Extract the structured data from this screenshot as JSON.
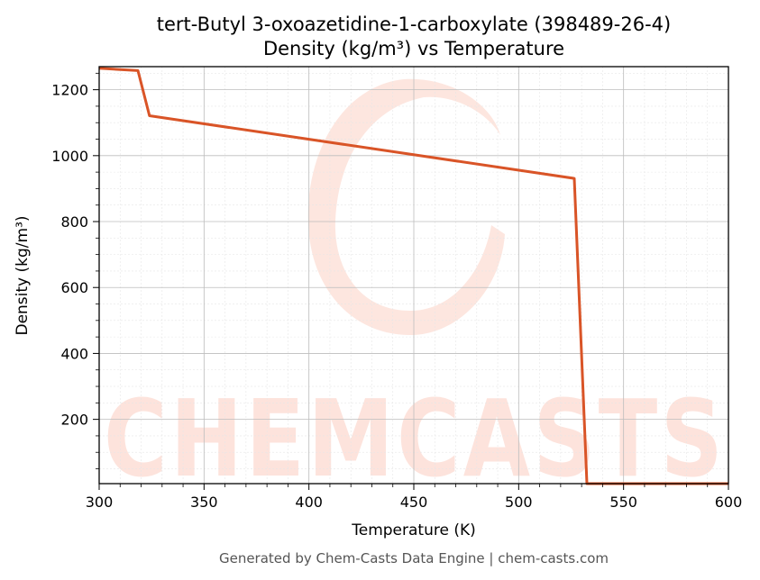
{
  "chart_data": {
    "type": "line",
    "title": "tert-Butyl 3-oxoazetidine-1-carboxylate (398489-26-4)",
    "subtitle": "Density (kg/m³) vs Temperature",
    "xlabel": "Temperature (K)",
    "ylabel": "Density (kg/m³)",
    "xlim": [
      300,
      600
    ],
    "ylim": [
      5,
      1270
    ],
    "x_ticks": [
      300,
      350,
      400,
      450,
      500,
      550,
      600
    ],
    "y_ticks": [
      200,
      400,
      600,
      800,
      1000,
      1200
    ],
    "grid": true,
    "line_color": "#d95427",
    "series": [
      {
        "x": [
          300,
          318.5,
          324,
          526.5,
          532.5,
          600
        ],
        "y": [
          1265,
          1258,
          1121,
          931,
          5,
          5
        ]
      }
    ]
  },
  "watermark": {
    "text": "CHEMCASTS",
    "color": "#fde3dc"
  },
  "footer": "Generated by Chem-Casts Data Engine | chem-casts.com"
}
